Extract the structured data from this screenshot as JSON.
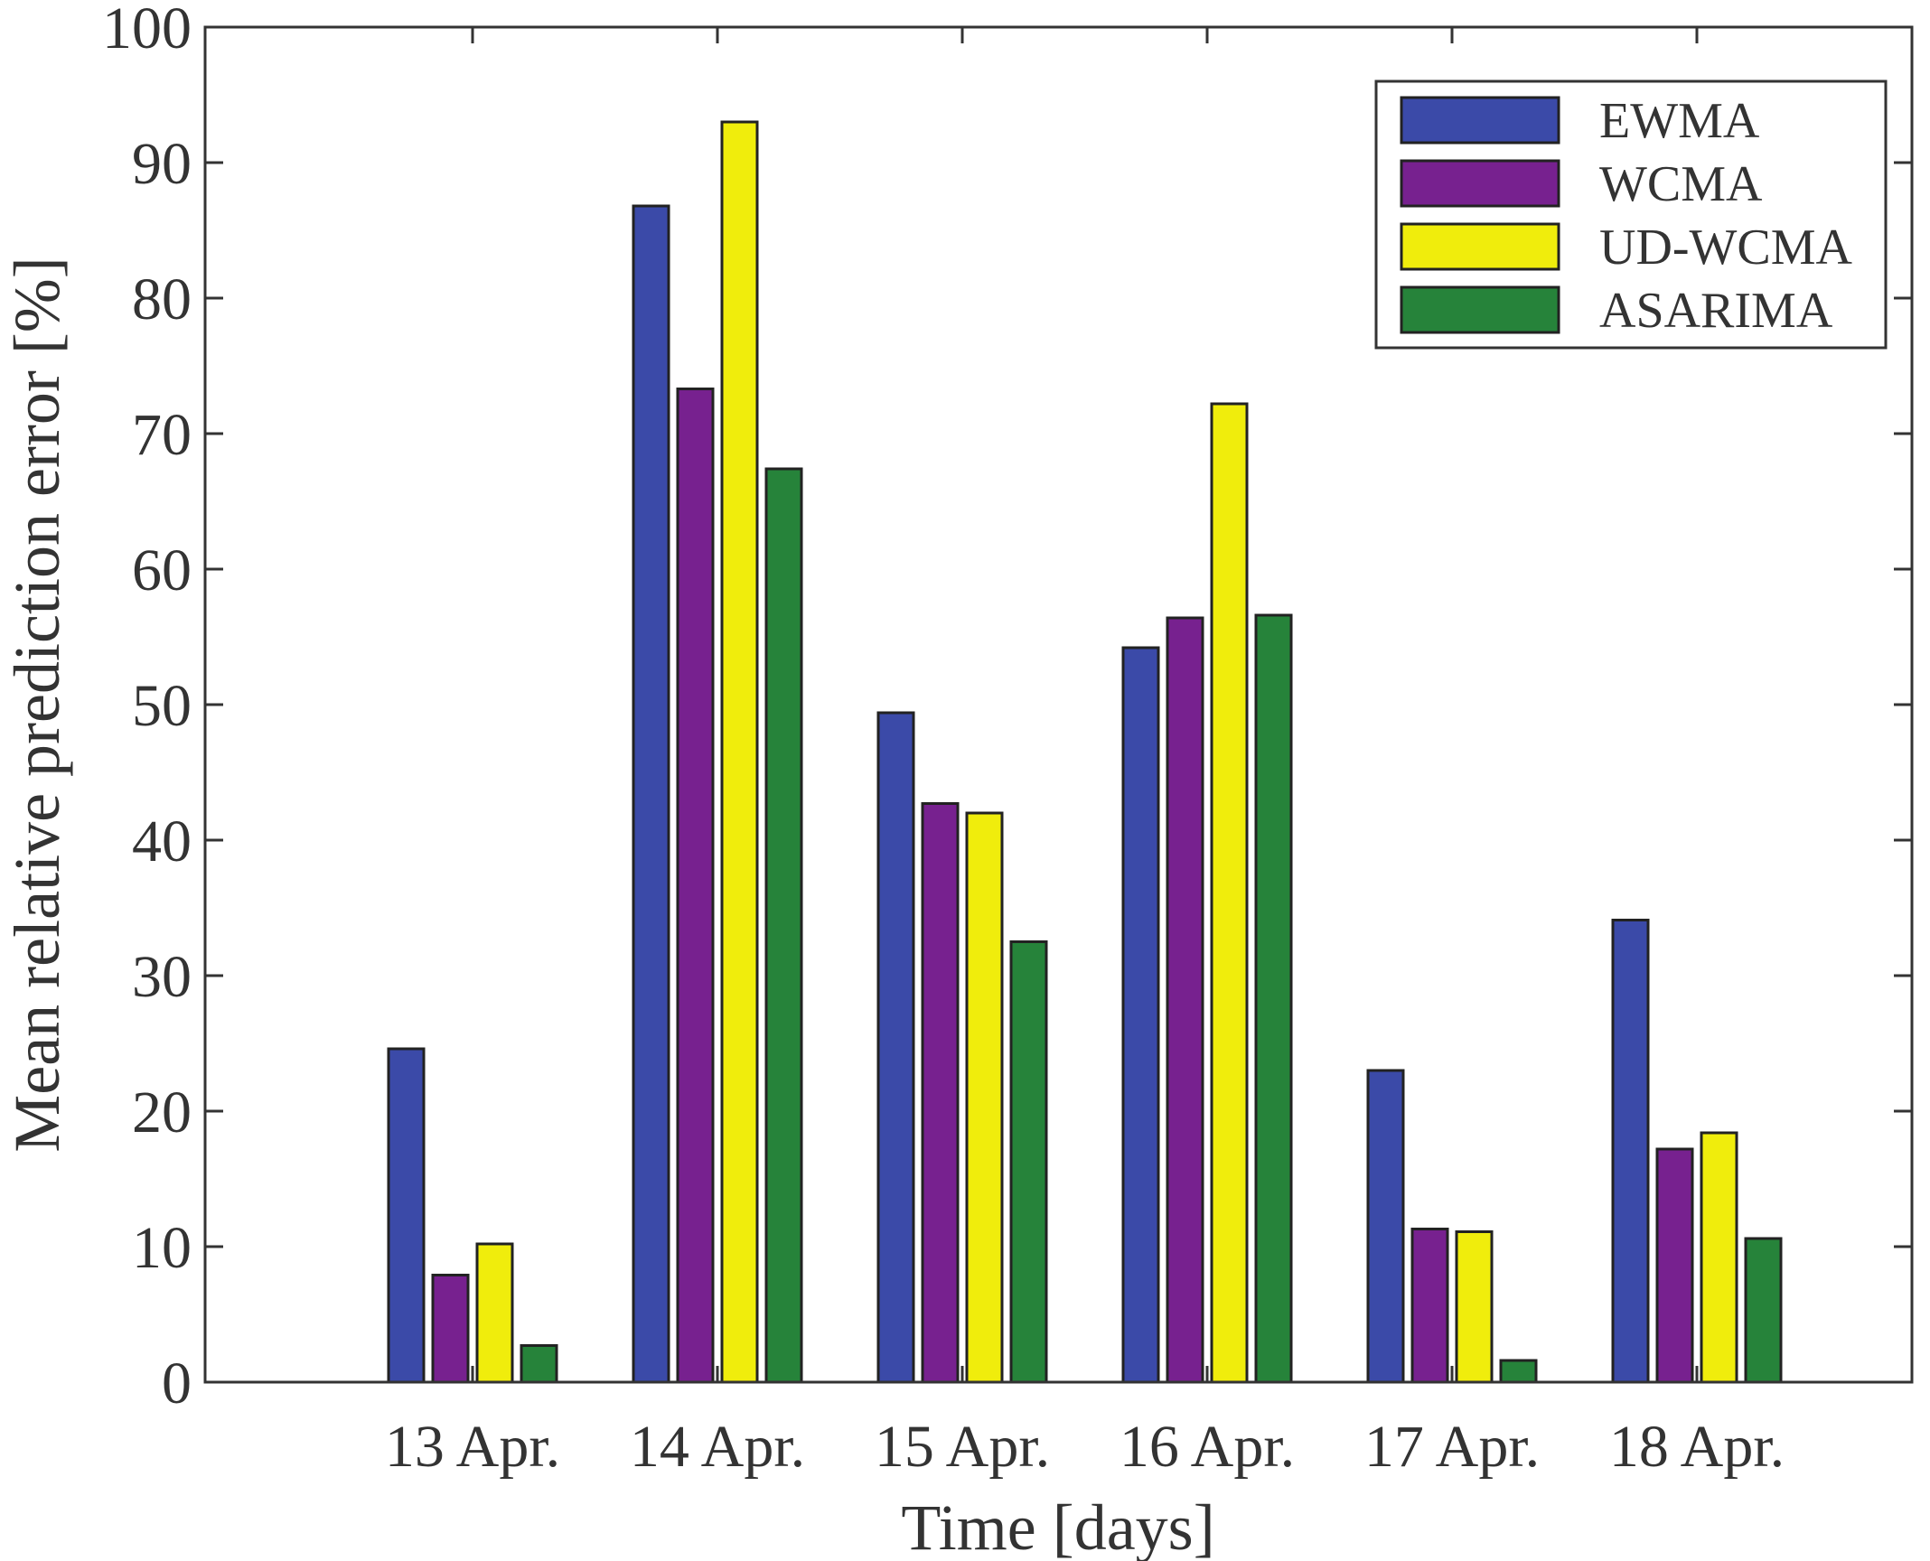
{
  "chart_data": {
    "type": "bar",
    "title": "",
    "xlabel": "Time [days]",
    "ylabel": "Mean relative prediction error [%]",
    "categories": [
      "13 Apr.",
      "14 Apr.",
      "15 Apr.",
      "16 Apr.",
      "17 Apr.",
      "18 Apr."
    ],
    "ylim": [
      0,
      100
    ],
    "yticks": [
      "0",
      "10",
      "20",
      "30",
      "40",
      "50",
      "60",
      "70",
      "80",
      "90",
      "100"
    ],
    "grid": false,
    "legend_position": "top-right",
    "series": [
      {
        "name": "EWMA",
        "color": "#3b4aa8",
        "values": [
          24.6,
          86.8,
          49.4,
          54.2,
          23.0,
          34.1
        ]
      },
      {
        "name": "WCMA",
        "color": "#77218f",
        "values": [
          7.9,
          73.3,
          42.7,
          56.4,
          11.3,
          17.2
        ]
      },
      {
        "name": "UD-WCMA",
        "color": "#f0ed0c",
        "values": [
          10.2,
          93.0,
          42.0,
          72.2,
          11.1,
          18.4
        ]
      },
      {
        "name": "ASARIMA",
        "color": "#26833a",
        "values": [
          2.7,
          67.4,
          32.5,
          56.6,
          1.6,
          10.6
        ]
      }
    ]
  }
}
